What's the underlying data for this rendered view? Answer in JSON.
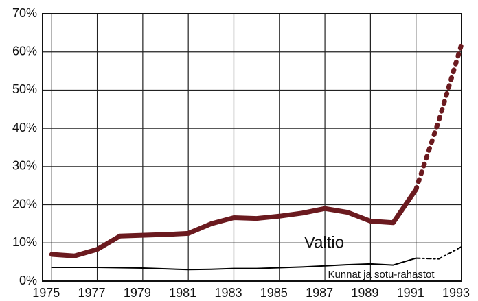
{
  "chart_data": {
    "type": "line",
    "x": [
      1975,
      1976,
      1977,
      1978,
      1979,
      1980,
      1981,
      1982,
      1983,
      1984,
      1985,
      1986,
      1987,
      1988,
      1989,
      1990,
      1991,
      1992,
      1993
    ],
    "series": [
      {
        "name": "Valtio",
        "color": "#6b1a1f",
        "dashed_from": 1991,
        "values": [
          7,
          6.6,
          8.3,
          11.8,
          12,
          12.2,
          12.5,
          15,
          16.6,
          16.4,
          17,
          17.8,
          19,
          18,
          15.7,
          15.3,
          24,
          42,
          62
        ]
      },
      {
        "name": "Kunnat ja sotu-rahastot",
        "color": "#000000",
        "dashed_from": 1991,
        "values": [
          3.6,
          3.6,
          3.6,
          3.5,
          3.4,
          3.2,
          3,
          3.1,
          3.3,
          3.3,
          3.5,
          3.7,
          4,
          4.3,
          4.5,
          4.2,
          6,
          5.8,
          9
        ]
      }
    ],
    "xlim": [
      1974.6,
      1993
    ],
    "xticks": [
      1975,
      1977,
      1979,
      1981,
      1983,
      1985,
      1987,
      1989,
      1991,
      1993
    ],
    "ylim": [
      0,
      70
    ],
    "yticks": [
      {
        "value": 0,
        "label": "0%"
      },
      {
        "value": 10,
        "label": "10%"
      },
      {
        "value": 20,
        "label": "20%"
      },
      {
        "value": 30,
        "label": "30%"
      },
      {
        "value": 40,
        "label": "40%"
      },
      {
        "value": 50,
        "label": "50%"
      },
      {
        "value": 60,
        "label": "60%"
      },
      {
        "value": 70,
        "label": "70%"
      }
    ],
    "grid": true
  }
}
